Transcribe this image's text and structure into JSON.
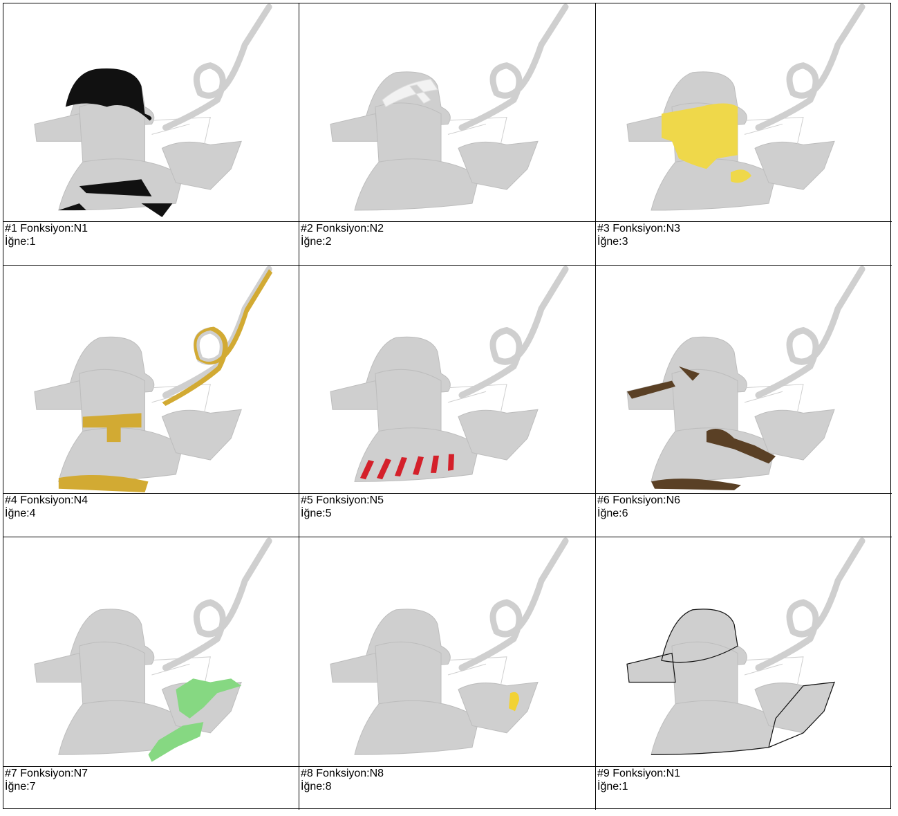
{
  "cells": [
    {
      "function": "#1 Fonksiyon:N1",
      "needle": "İğne:1",
      "color": "#111111"
    },
    {
      "function": "#2 Fonksiyon:N2",
      "needle": "İğne:2",
      "color": "#f2f2f2"
    },
    {
      "function": "#3 Fonksiyon:N3",
      "needle": "İğne:3",
      "color": "#efd84a"
    },
    {
      "function": "#4 Fonksiyon:N4",
      "needle": "İğne:4",
      "color": "#d2aa33"
    },
    {
      "function": "#5 Fonksiyon:N5",
      "needle": "İğne:5",
      "color": "#d4202a"
    },
    {
      "function": "#6 Fonksiyon:N6",
      "needle": "İğne:6",
      "color": "#5a4025"
    },
    {
      "function": "#7 Fonksiyon:N7",
      "needle": "İğne:7",
      "color": "#86d882"
    },
    {
      "function": "#8 Fonksiyon:N8",
      "needle": "İğne:8",
      "color": "#f2d235"
    },
    {
      "function": "#9 Fonksiyon:N1",
      "needle": "İğne:1",
      "color": "#111111"
    }
  ]
}
